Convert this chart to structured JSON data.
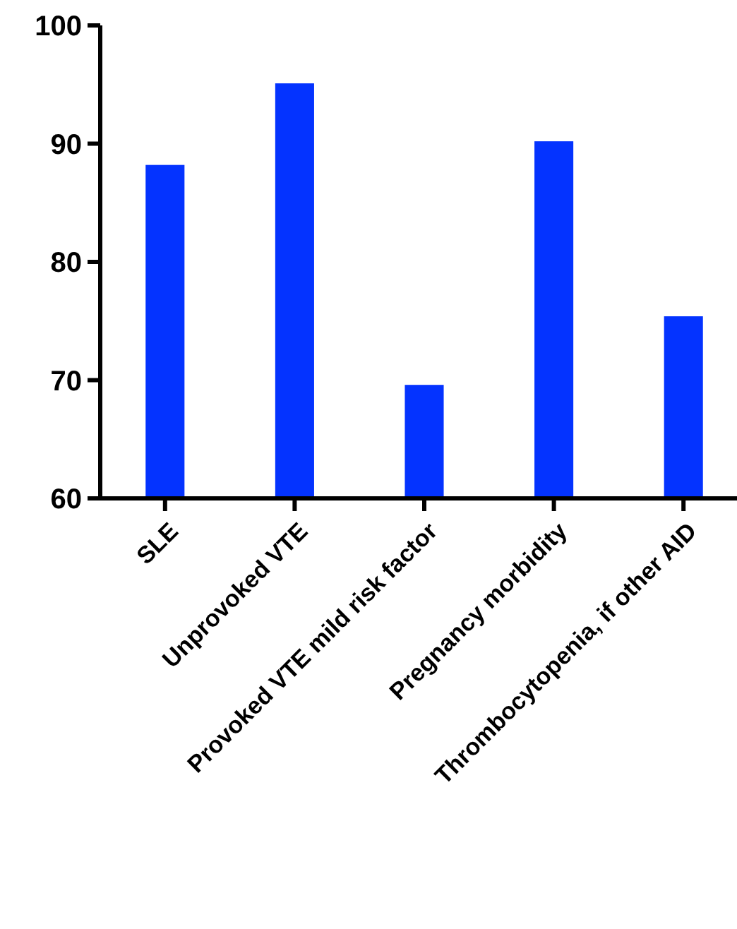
{
  "chart_data": {
    "type": "bar",
    "categories": [
      "SLE",
      "Unprovoked VTE",
      "Provoked VTE mild risk factor",
      "Pregnancy morbidity",
      "Thrombocytopenia, if other AID"
    ],
    "values": [
      88.2,
      95.1,
      69.6,
      90.2,
      75.4
    ],
    "color": "#0433ff",
    "ylim": [
      60,
      100
    ],
    "yticks": [
      60,
      70,
      80,
      90,
      100
    ],
    "grid": false
  }
}
